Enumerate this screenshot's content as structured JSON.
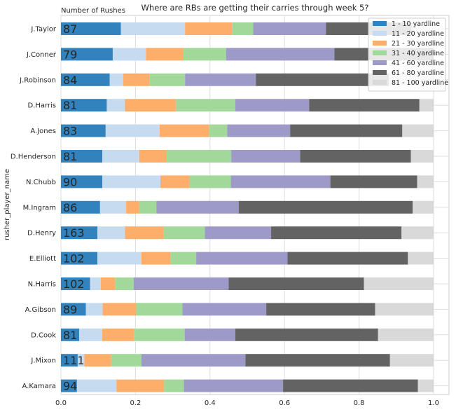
{
  "chart_data": {
    "type": "bar",
    "orientation": "horizontal",
    "stacked": true,
    "normalized": true,
    "title": "Where are RBs are getting their carries through week 5?",
    "annotation": "Number of Rushes",
    "ylabel": "rusher_player_name",
    "xlabel": "",
    "xlim": [
      0,
      1.0
    ],
    "xticks": [
      "0.0",
      "0.2",
      "0.4",
      "0.6",
      "0.8",
      "1.0"
    ],
    "grid": true,
    "legend_position": "top-right",
    "categories": [
      "J.Taylor",
      "J.Conner",
      "J.Robinson",
      "D.Harris",
      "A.Jones",
      "D.Henderson",
      "N.Chubb",
      "M.Ingram",
      "D.Henry",
      "E.Elliott",
      "N.Harris",
      "A.Gibson",
      "D.Cook",
      "J.Mixon",
      "A.Kamara"
    ],
    "rushes": [
      "87",
      "79",
      "84",
      "81",
      "83",
      "81",
      "90",
      "86",
      "163",
      "102",
      "102",
      "89",
      "81",
      "111",
      "94"
    ],
    "series": [
      {
        "name": "1 - 10 yardline",
        "color": "#3182bd",
        "values": [
          0.161,
          0.139,
          0.131,
          0.123,
          0.12,
          0.111,
          0.111,
          0.105,
          0.098,
          0.098,
          0.078,
          0.067,
          0.049,
          0.045,
          0.043
        ]
      },
      {
        "name": "11 - 20 yardline",
        "color": "#c6dbef",
        "values": [
          0.172,
          0.089,
          0.036,
          0.049,
          0.145,
          0.099,
          0.156,
          0.07,
          0.074,
          0.118,
          0.029,
          0.045,
          0.062,
          0.018,
          0.106
        ]
      },
      {
        "name": "21 - 30 yardline",
        "color": "#fdae6b",
        "values": [
          0.126,
          0.101,
          0.071,
          0.136,
          0.133,
          0.074,
          0.078,
          0.035,
          0.104,
          0.078,
          0.039,
          0.09,
          0.086,
          0.072,
          0.128
        ]
      },
      {
        "name": "31 - 40 yardline",
        "color": "#a1d99b",
        "values": [
          0.057,
          0.114,
          0.095,
          0.16,
          0.048,
          0.173,
          0.111,
          0.046,
          0.11,
          0.069,
          0.049,
          0.124,
          0.135,
          0.081,
          0.053
        ]
      },
      {
        "name": "41 - 60 yardline",
        "color": "#9e9ac8",
        "values": [
          0.195,
          0.291,
          0.19,
          0.198,
          0.169,
          0.185,
          0.267,
          0.221,
          0.178,
          0.245,
          0.255,
          0.225,
          0.136,
          0.279,
          0.266
        ]
      },
      {
        "name": "61 - 80 yardline",
        "color": "#636363",
        "values": [
          0.23,
          0.266,
          0.357,
          0.296,
          0.301,
          0.297,
          0.233,
          0.467,
          0.35,
          0.323,
          0.363,
          0.292,
          0.383,
          0.388,
          0.362
        ]
      },
      {
        "name": "81 - 100 yardline",
        "color": "#d9d9d9",
        "values": [
          0.059,
          0.0,
          0.12,
          0.038,
          0.084,
          0.061,
          0.044,
          0.056,
          0.086,
          0.069,
          0.187,
          0.157,
          0.149,
          0.117,
          0.042
        ]
      }
    ]
  }
}
